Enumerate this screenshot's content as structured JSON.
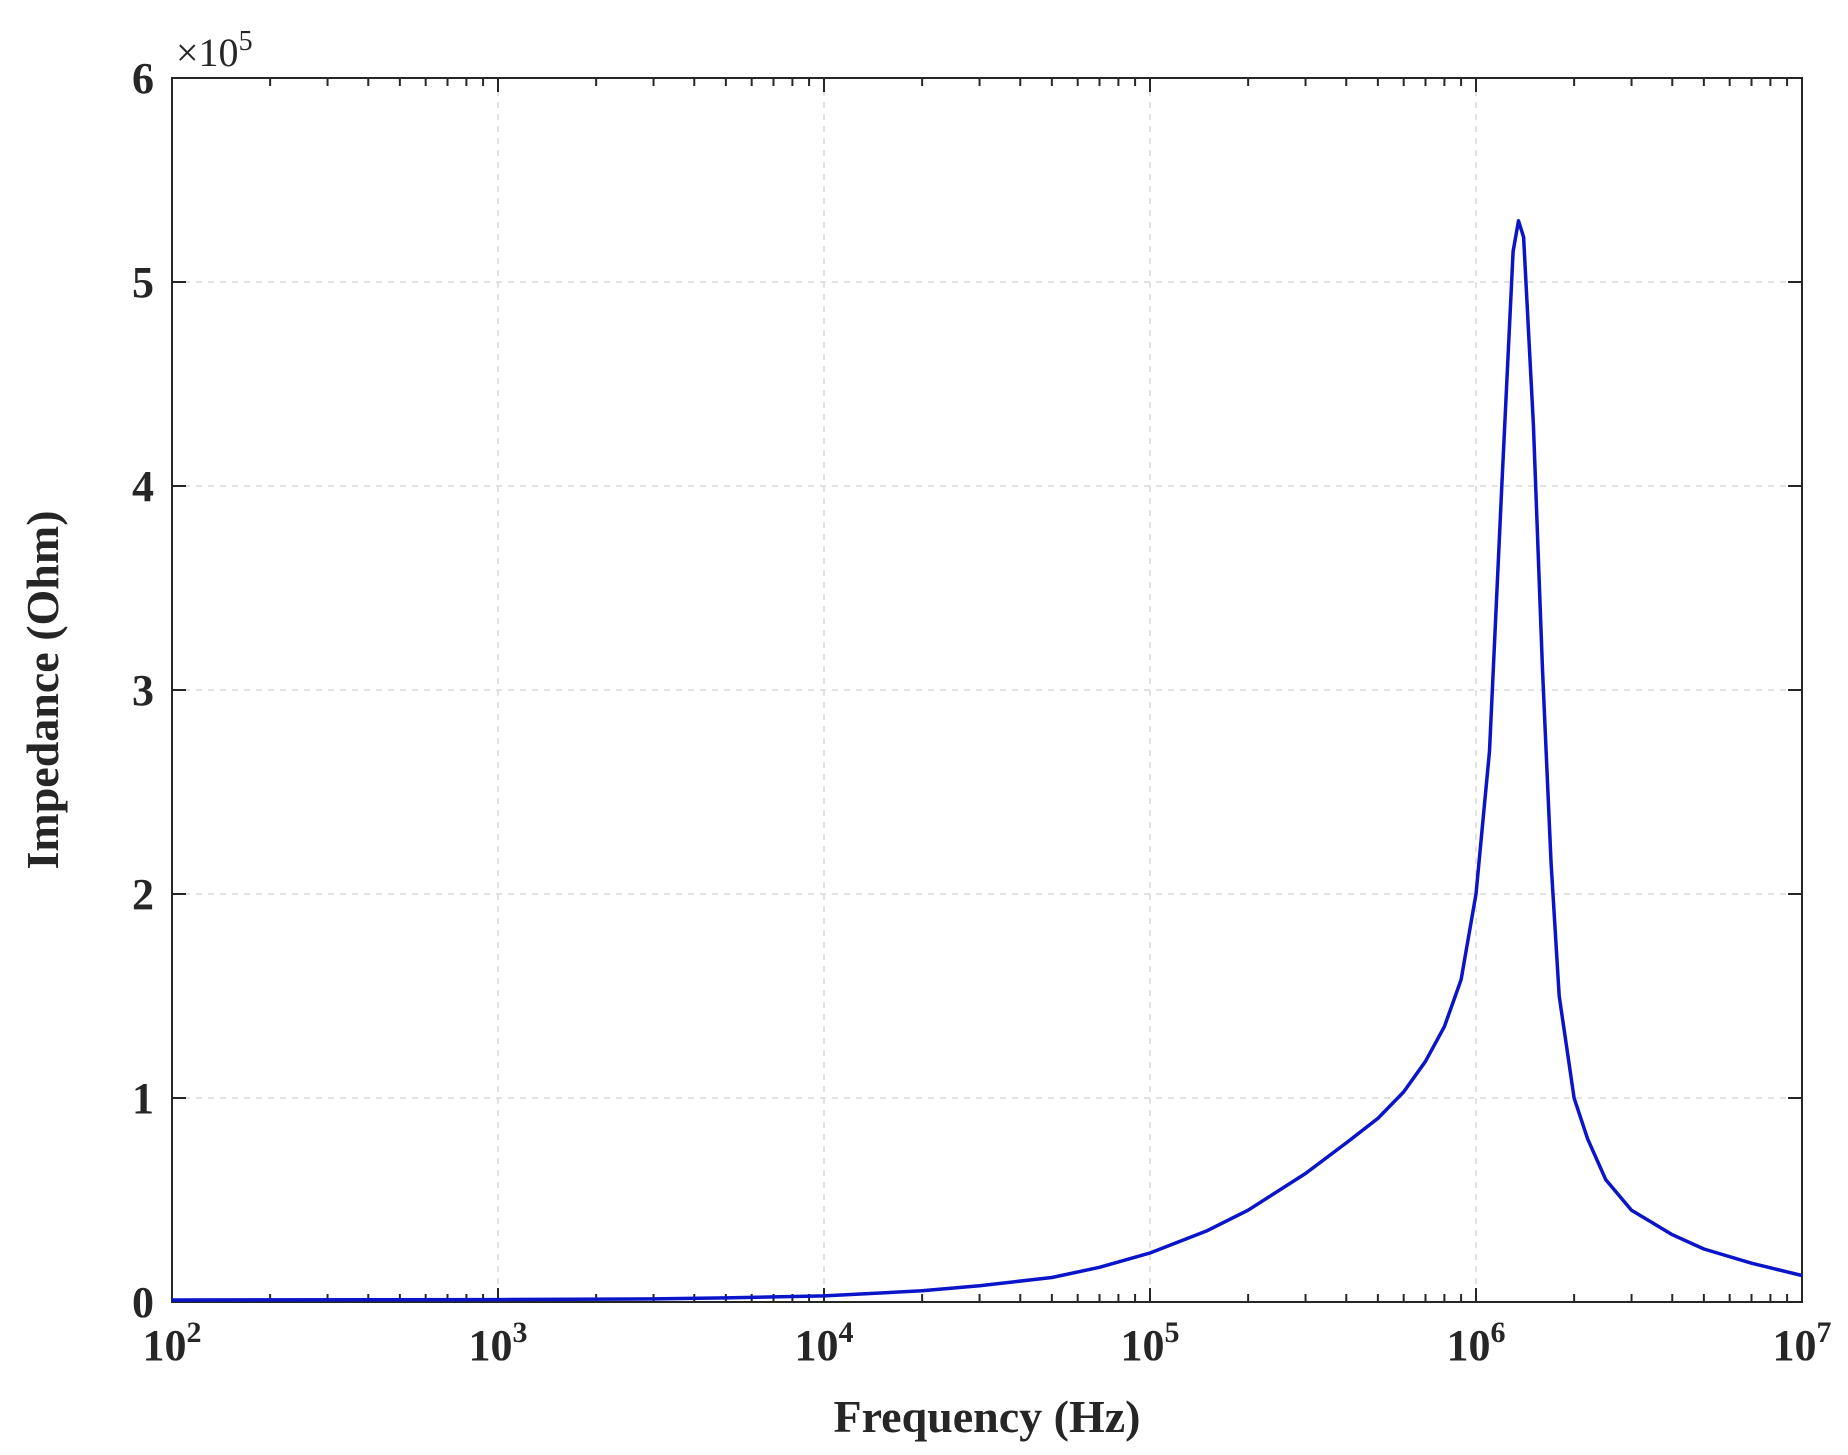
{
  "chart_data": {
    "type": "line",
    "title": "",
    "xlabel": "Frequency (Hz)",
    "ylabel": "Impedance (Ohm)",
    "x_scale": "log",
    "xlim": [
      100,
      10000000
    ],
    "ylim": [
      0,
      600000
    ],
    "y_multiplier": {
      "base": "×10",
      "exp": "5"
    },
    "x_ticks": [
      {
        "value": 100,
        "base": "10",
        "exp": "2"
      },
      {
        "value": 1000,
        "base": "10",
        "exp": "3"
      },
      {
        "value": 10000,
        "base": "10",
        "exp": "4"
      },
      {
        "value": 100000,
        "base": "10",
        "exp": "5"
      },
      {
        "value": 1000000,
        "base": "10",
        "exp": "6"
      },
      {
        "value": 10000000,
        "base": "10",
        "exp": "7"
      }
    ],
    "y_ticks": [
      {
        "value": 0,
        "label": "0"
      },
      {
        "value": 100000,
        "label": "1"
      },
      {
        "value": 200000,
        "label": "2"
      },
      {
        "value": 300000,
        "label": "3"
      },
      {
        "value": 400000,
        "label": "4"
      },
      {
        "value": 500000,
        "label": "5"
      },
      {
        "value": 600000,
        "label": "6"
      }
    ],
    "grid": true,
    "series": [
      {
        "color": "#0a14c8",
        "x": [
          100,
          1000,
          3000,
          5000,
          10000,
          20000,
          30000,
          50000,
          70000,
          100000,
          150000,
          200000,
          300000,
          400000,
          500000,
          600000,
          700000,
          800000,
          900000,
          1000000,
          1100000,
          1200000,
          1300000,
          1350000,
          1400000,
          1500000,
          1600000,
          1700000,
          1800000,
          2000000,
          2200000,
          2500000,
          3000000,
          4000000,
          5000000,
          7000000,
          10000000
        ],
        "y": [
          1000,
          1200,
          1500,
          2000,
          3000,
          5500,
          8000,
          12000,
          17000,
          24000,
          35000,
          45000,
          63000,
          78000,
          90000,
          103000,
          118000,
          135000,
          158000,
          200000,
          270000,
          400000,
          515000,
          530000,
          522000,
          430000,
          310000,
          215000,
          150000,
          100000,
          80000,
          60000,
          45000,
          33000,
          26000,
          19000,
          13000
        ]
      }
    ]
  }
}
